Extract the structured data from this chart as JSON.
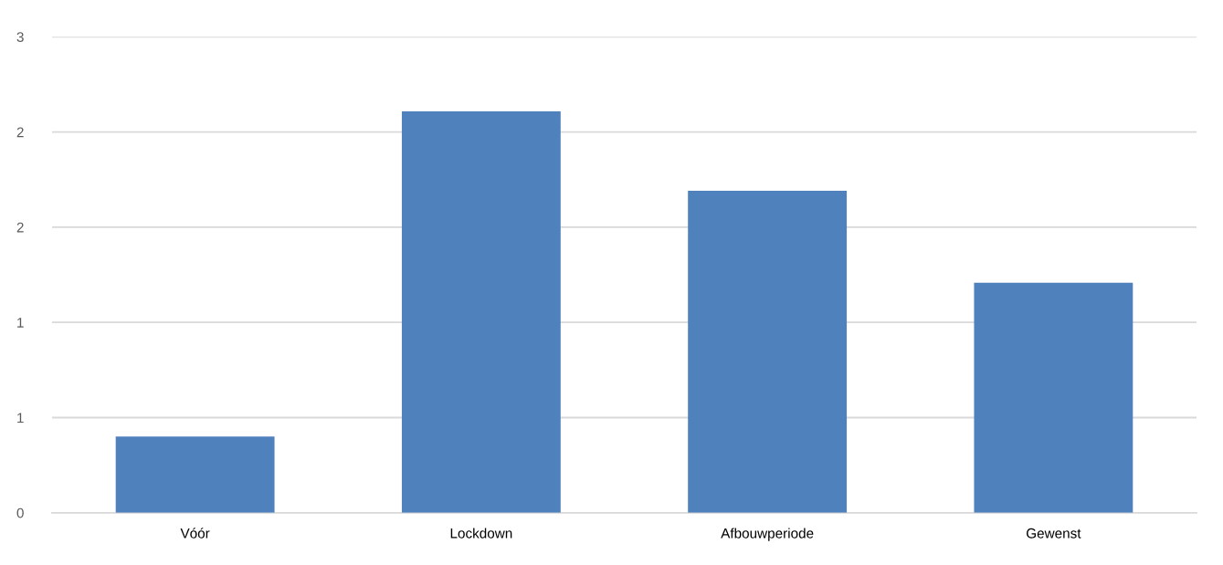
{
  "chart_data": {
    "type": "bar",
    "categories": [
      "Vóór",
      "Lockdown",
      "Afbouwperiode",
      "Gewenst"
    ],
    "values": [
      0.48,
      2.53,
      2.03,
      1.45
    ],
    "color": "#4f81bd",
    "ylim": [
      0,
      3
    ],
    "yticks": [
      0,
      {
        "value": 0.6,
        "label": "1"
      },
      {
        "value": 1.2,
        "label": "1"
      },
      {
        "value": 1.8,
        "label": "2"
      },
      {
        "value": 2.4,
        "label": "2"
      },
      3
    ],
    "grid": "y",
    "legend": false
  }
}
